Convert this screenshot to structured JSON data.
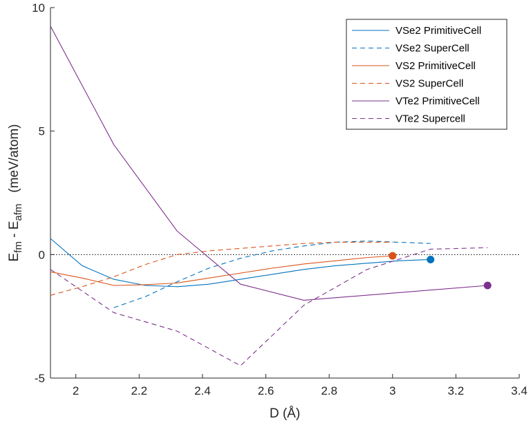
{
  "chart_data": {
    "type": "line",
    "xlabel": "D (Å)",
    "ylabel": {
      "main": "E",
      "sub1": "fm",
      "mid": " - E",
      "sub2": "afm",
      "unit": "(meV/atom)"
    },
    "xlim": [
      1.92,
      3.4
    ],
    "ylim": [
      -5,
      10
    ],
    "x_ticks": [
      2,
      2.2,
      2.4,
      2.6,
      2.8,
      3,
      3.2,
      3.4
    ],
    "x_tick_labels": [
      "2",
      "2.2",
      "2.4",
      "2.6",
      "2.8",
      "3",
      "3.2",
      "3.4"
    ],
    "y_ticks": [
      -5,
      0,
      5,
      10
    ],
    "y_tick_labels": [
      "-5",
      "0",
      "5",
      "10"
    ],
    "zero_line": true,
    "legend_position": "top-right",
    "series": [
      {
        "name": "VSe2 PrimitiveCell",
        "color": "#0072BD",
        "dash": "solid",
        "x": [
          1.92,
          2.02,
          2.12,
          2.22,
          2.32,
          2.42,
          2.52,
          2.62,
          2.72,
          2.82,
          2.92,
          3.02,
          3.12
        ],
        "y": [
          0.65,
          -0.45,
          -1.0,
          -1.25,
          -1.3,
          -1.2,
          -1.0,
          -0.8,
          -0.6,
          -0.45,
          -0.35,
          -0.25,
          -0.2
        ]
      },
      {
        "name": "VSe2 SuperCell",
        "color": "#0072BD",
        "dash": "dashed",
        "x": [
          2.12,
          2.22,
          2.32,
          2.42,
          2.52,
          2.62,
          2.72,
          2.82,
          2.92,
          3.02,
          3.12
        ],
        "y": [
          -2.15,
          -1.7,
          -1.1,
          -0.55,
          -0.15,
          0.15,
          0.35,
          0.5,
          0.55,
          0.5,
          0.45
        ]
      },
      {
        "name": "VS2 PrimitiveCell",
        "color": "#D95319",
        "dash": "solid",
        "x": [
          1.92,
          2.02,
          2.12,
          2.22,
          2.32,
          2.42,
          2.52,
          2.62,
          2.72,
          2.82,
          2.92,
          3.0
        ],
        "y": [
          -0.7,
          -0.95,
          -1.25,
          -1.22,
          -1.15,
          -0.95,
          -0.75,
          -0.55,
          -0.38,
          -0.25,
          -0.12,
          -0.05
        ]
      },
      {
        "name": "VS2 SuperCell",
        "color": "#D95319",
        "dash": "dashed",
        "x": [
          1.92,
          2.02,
          2.12,
          2.22,
          2.32,
          2.42,
          2.52,
          2.62,
          2.72,
          2.82,
          2.92,
          3.0
        ],
        "y": [
          -1.65,
          -1.3,
          -0.9,
          -0.4,
          0.0,
          0.15,
          0.25,
          0.35,
          0.45,
          0.5,
          0.5,
          0.5
        ]
      },
      {
        "name": "VTe2 PrimitiveCell",
        "color": "#7E2F8E",
        "dash": "solid",
        "x": [
          1.92,
          2.12,
          2.32,
          2.52,
          2.72,
          3.3
        ],
        "y": [
          9.25,
          4.45,
          0.95,
          -1.2,
          -1.85,
          -1.25
        ]
      },
      {
        "name": "VTe2 Supercell",
        "color": "#7E2F8E",
        "dash": "dashed",
        "x": [
          1.92,
          2.12,
          2.32,
          2.52,
          2.72,
          2.92,
          3.12,
          3.3
        ],
        "y": [
          -0.6,
          -2.35,
          -3.1,
          -4.5,
          -2.05,
          -0.6,
          0.22,
          0.28
        ]
      }
    ],
    "endpoint_markers": [
      {
        "series": "VS2 PrimitiveCell",
        "color": "#D95319",
        "x": 3.0,
        "y": -0.05
      },
      {
        "series": "VSe2 PrimitiveCell",
        "color": "#0072BD",
        "x": 3.12,
        "y": -0.2
      },
      {
        "series": "VTe2 PrimitiveCell",
        "color": "#7E2F8E",
        "x": 3.3,
        "y": -1.25
      }
    ]
  }
}
